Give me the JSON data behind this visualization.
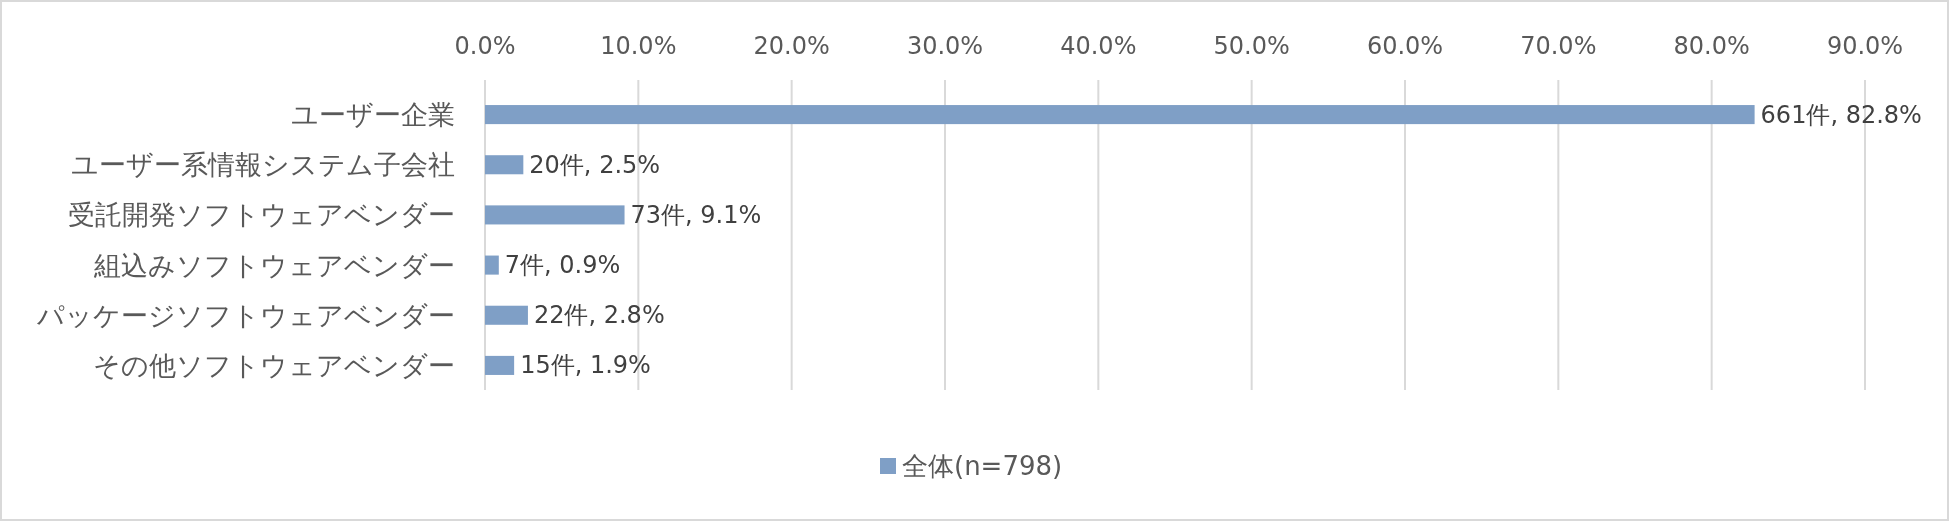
{
  "chart_data": {
    "type": "bar",
    "orientation": "horizontal",
    "categories": [
      "ユーザー企業",
      "ユーザー系情報システム子会社",
      "受託開発ソフトウェアベンダー",
      "組込みソフトウェアベンダー",
      "パッケージソフトウェアベンダー",
      "その他ソフトウェアベンダー"
    ],
    "series": [
      {
        "name": "全体(n=798)",
        "color": "#7f9fc6",
        "values": [
          82.8,
          2.5,
          9.1,
          0.9,
          2.8,
          1.9
        ],
        "value_labels": [
          "661件, 82.8%",
          "20件, 2.5%",
          "73件, 9.1%",
          "7件, 0.9%",
          "22件, 2.8%",
          "15件, 1.9%"
        ]
      }
    ],
    "xlim": [
      0,
      90
    ],
    "xticks": [
      {
        "value": 0,
        "label": "0.0%"
      },
      {
        "value": 10,
        "label": "10.0%"
      },
      {
        "value": 20,
        "label": "20.0%"
      },
      {
        "value": 30,
        "label": "30.0%"
      },
      {
        "value": 40,
        "label": "40.0%"
      },
      {
        "value": 50,
        "label": "50.0%"
      },
      {
        "value": 60,
        "label": "60.0%"
      },
      {
        "value": 70,
        "label": "70.0%"
      },
      {
        "value": 80,
        "label": "80.0%"
      },
      {
        "value": 90,
        "label": "90.0%"
      }
    ],
    "grid": "x",
    "legend": "bottom"
  }
}
